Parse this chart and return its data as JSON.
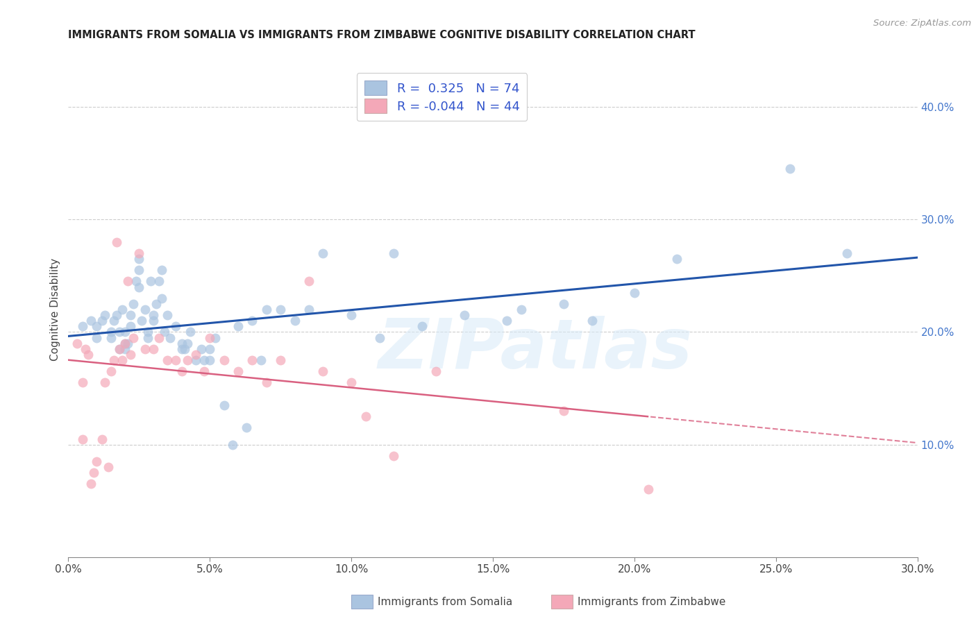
{
  "title": "IMMIGRANTS FROM SOMALIA VS IMMIGRANTS FROM ZIMBABWE COGNITIVE DISABILITY CORRELATION CHART",
  "source": "Source: ZipAtlas.com",
  "ylabel": "Cognitive Disability",
  "xlim": [
    0.0,
    0.3
  ],
  "ylim": [
    0.0,
    0.44
  ],
  "r_somalia": 0.325,
  "n_somalia": 74,
  "r_zimbabwe": -0.044,
  "n_zimbabwe": 44,
  "somalia_color": "#aac4e0",
  "zimbabwe_color": "#f4a8b8",
  "somalia_line_color": "#2255aa",
  "zimbabwe_line_color": "#d96080",
  "watermark_text": "ZIPatlas",
  "somalia_x": [
    0.005,
    0.008,
    0.01,
    0.01,
    0.012,
    0.013,
    0.015,
    0.015,
    0.016,
    0.017,
    0.018,
    0.018,
    0.019,
    0.02,
    0.02,
    0.02,
    0.021,
    0.022,
    0.022,
    0.023,
    0.024,
    0.025,
    0.025,
    0.025,
    0.026,
    0.027,
    0.028,
    0.028,
    0.029,
    0.03,
    0.03,
    0.031,
    0.032,
    0.033,
    0.033,
    0.034,
    0.035,
    0.036,
    0.038,
    0.04,
    0.04,
    0.041,
    0.042,
    0.043,
    0.045,
    0.047,
    0.048,
    0.05,
    0.05,
    0.052,
    0.055,
    0.058,
    0.06,
    0.063,
    0.065,
    0.068,
    0.07,
    0.075,
    0.08,
    0.085,
    0.09,
    0.1,
    0.11,
    0.115,
    0.125,
    0.14,
    0.155,
    0.16,
    0.175,
    0.185,
    0.2,
    0.215,
    0.255,
    0.275
  ],
  "somalia_y": [
    0.205,
    0.21,
    0.195,
    0.205,
    0.21,
    0.215,
    0.195,
    0.2,
    0.21,
    0.215,
    0.185,
    0.2,
    0.22,
    0.185,
    0.19,
    0.2,
    0.19,
    0.205,
    0.215,
    0.225,
    0.245,
    0.255,
    0.24,
    0.265,
    0.21,
    0.22,
    0.195,
    0.2,
    0.245,
    0.215,
    0.21,
    0.225,
    0.245,
    0.255,
    0.23,
    0.2,
    0.215,
    0.195,
    0.205,
    0.185,
    0.19,
    0.185,
    0.19,
    0.2,
    0.175,
    0.185,
    0.175,
    0.175,
    0.185,
    0.195,
    0.135,
    0.1,
    0.205,
    0.115,
    0.21,
    0.175,
    0.22,
    0.22,
    0.21,
    0.22,
    0.27,
    0.215,
    0.195,
    0.27,
    0.205,
    0.215,
    0.21,
    0.22,
    0.225,
    0.21,
    0.235,
    0.265,
    0.345,
    0.27
  ],
  "zimbabwe_x": [
    0.003,
    0.005,
    0.005,
    0.006,
    0.007,
    0.008,
    0.009,
    0.01,
    0.012,
    0.013,
    0.014,
    0.015,
    0.016,
    0.017,
    0.018,
    0.019,
    0.02,
    0.021,
    0.022,
    0.023,
    0.025,
    0.027,
    0.03,
    0.032,
    0.035,
    0.038,
    0.04,
    0.042,
    0.045,
    0.048,
    0.05,
    0.055,
    0.06,
    0.065,
    0.07,
    0.075,
    0.085,
    0.09,
    0.1,
    0.105,
    0.115,
    0.13,
    0.175,
    0.205
  ],
  "zimbabwe_y": [
    0.19,
    0.105,
    0.155,
    0.185,
    0.18,
    0.065,
    0.075,
    0.085,
    0.105,
    0.155,
    0.08,
    0.165,
    0.175,
    0.28,
    0.185,
    0.175,
    0.19,
    0.245,
    0.18,
    0.195,
    0.27,
    0.185,
    0.185,
    0.195,
    0.175,
    0.175,
    0.165,
    0.175,
    0.18,
    0.165,
    0.195,
    0.175,
    0.165,
    0.175,
    0.155,
    0.175,
    0.245,
    0.165,
    0.155,
    0.125,
    0.09,
    0.165,
    0.13,
    0.06
  ],
  "xtick_vals": [
    0.0,
    0.05,
    0.1,
    0.15,
    0.2,
    0.25,
    0.3
  ],
  "xtick_labels": [
    "0.0%",
    "5.0%",
    "10.0%",
    "15.0%",
    "20.0%",
    "25.0%",
    "30.0%"
  ],
  "ytick_right_vals": [
    0.1,
    0.2,
    0.3,
    0.4
  ],
  "ytick_right_labels": [
    "10.0%",
    "20.0%",
    "30.0%",
    "40.0%"
  ],
  "background_color": "#ffffff",
  "grid_color": "#cccccc",
  "legend_somalia_label": "R =  0.325   N = 74",
  "legend_zimbabwe_label": "R = -0.044   N = 44",
  "bottom_label_somalia": "Immigrants from Somalia",
  "bottom_label_zimbabwe": "Immigrants from Zimbabwe"
}
